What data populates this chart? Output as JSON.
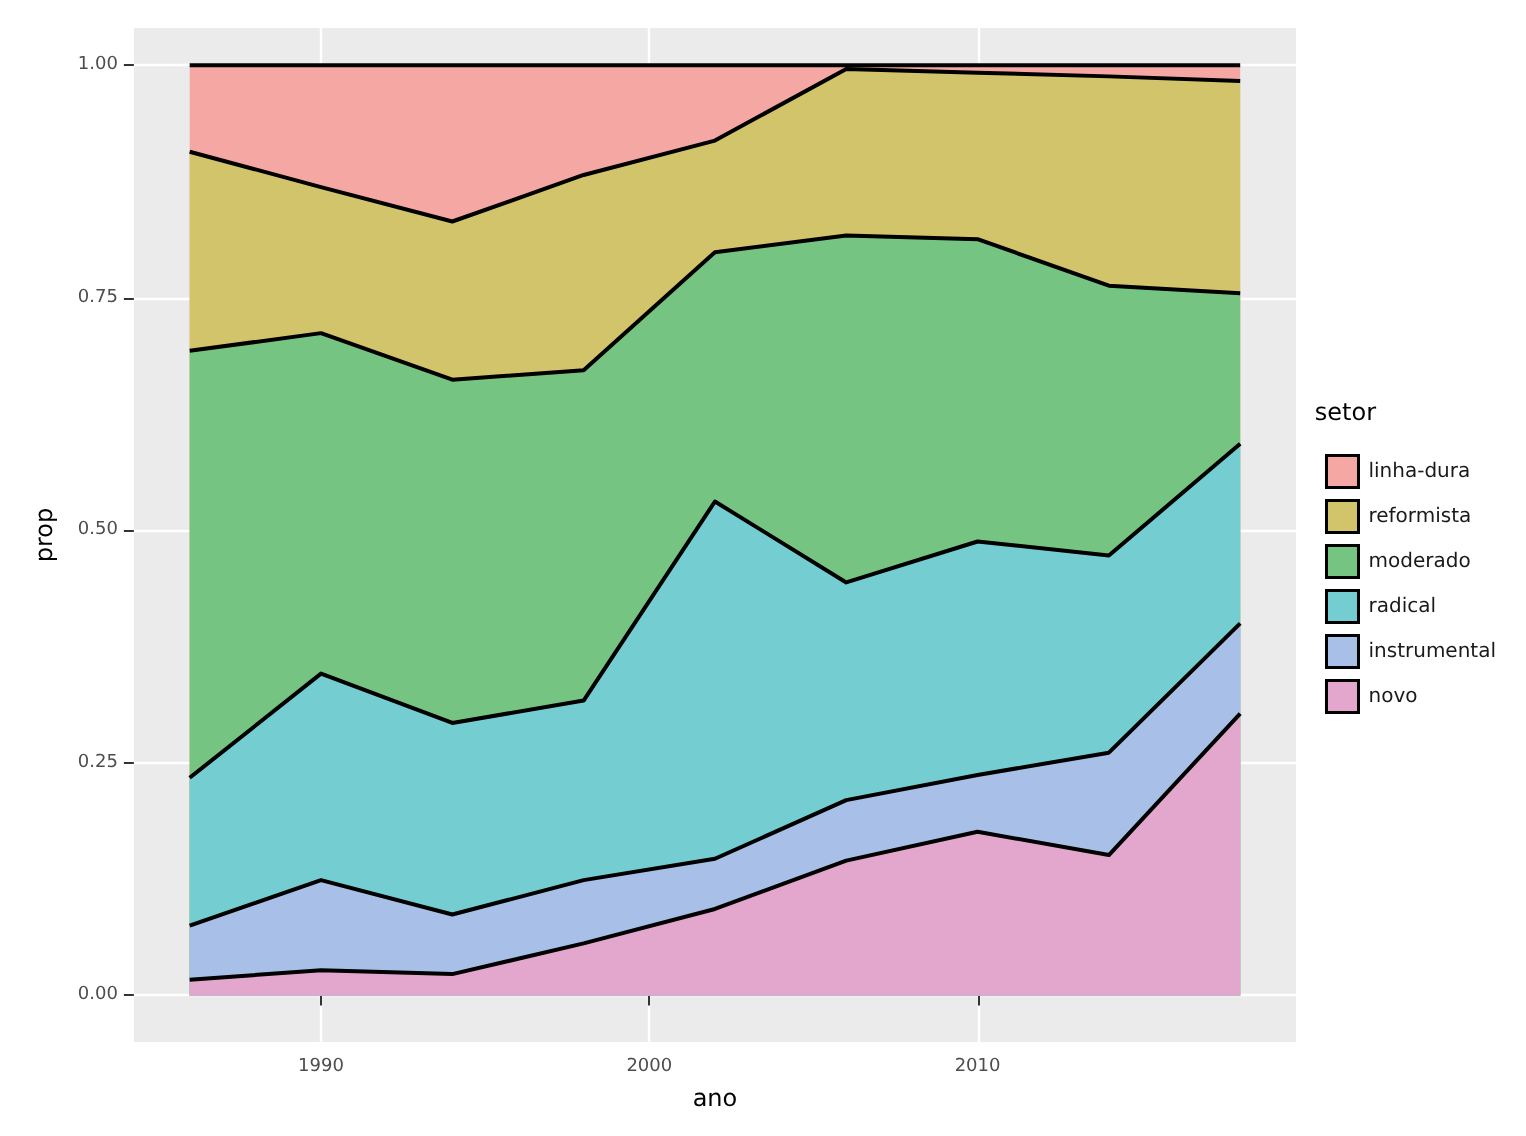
{
  "chart_data": {
    "type": "area",
    "stacked": true,
    "xlabel": "ano",
    "ylabel": "prop",
    "legend_title": "setor",
    "legend": "right",
    "grid": true,
    "x": [
      1986,
      1990,
      1994,
      1998,
      2002,
      2006,
      2010,
      2014,
      2018
    ],
    "xlim": [
      1984.3,
      2019.7
    ],
    "xticks": [
      1990,
      2000,
      2010
    ],
    "ylim": [
      -0.05,
      1.04
    ],
    "yticks": [
      {
        "value": 0,
        "label": "0.00"
      },
      {
        "value": 0.25,
        "label": "0.25"
      },
      {
        "value": 0.5,
        "label": "0.50"
      },
      {
        "value": 0.75,
        "label": "0.75"
      },
      {
        "value": 1,
        "label": "1.00"
      }
    ],
    "series": [
      {
        "name": "novo",
        "color": "#e3a6cc",
        "values": [
          0.017,
          0.027,
          0.023,
          0.056,
          0.093,
          0.145,
          0.176,
          0.151,
          0.303
        ]
      },
      {
        "name": "instrumental",
        "color": "#a8bfe7",
        "values": [
          0.058,
          0.097,
          0.064,
          0.068,
          0.054,
          0.065,
          0.061,
          0.11,
          0.097
        ]
      },
      {
        "name": "radical",
        "color": "#74cdd1",
        "values": [
          0.159,
          0.222,
          0.206,
          0.193,
          0.384,
          0.234,
          0.251,
          0.212,
          0.193
        ]
      },
      {
        "name": "moderado",
        "color": "#76c482",
        "values": [
          0.459,
          0.366,
          0.369,
          0.355,
          0.268,
          0.373,
          0.325,
          0.29,
          0.162
        ]
      },
      {
        "name": "reformista",
        "color": "#d2c46a",
        "values": [
          0.214,
          0.157,
          0.17,
          0.21,
          0.12,
          0.179,
          0.179,
          0.225,
          0.228
        ]
      },
      {
        "name": "linha-dura",
        "color": "#f4a7a3",
        "values": [
          0.093,
          0.131,
          0.168,
          0.118,
          0.081,
          0.004,
          0.008,
          0.012,
          0.017
        ]
      }
    ]
  }
}
